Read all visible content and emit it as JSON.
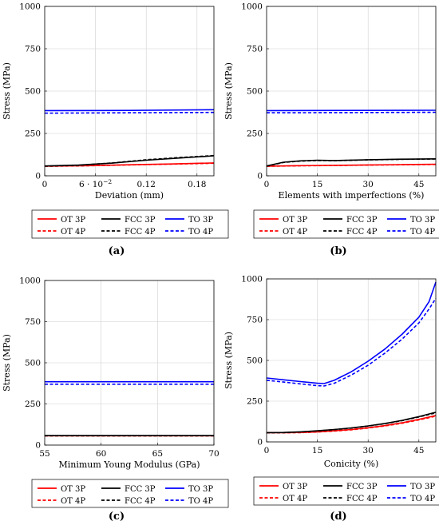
{
  "legend_entries": [
    {
      "label": "OT 3P",
      "color": "#ff0000",
      "dash": false
    },
    {
      "label": "FCC 3P",
      "color": "#000000",
      "dash": false
    },
    {
      "label": "TO 3P",
      "color": "#0000ff",
      "dash": false
    },
    {
      "label": "OT 4P",
      "color": "#ff0000",
      "dash": true
    },
    {
      "label": "FCC 4P",
      "color": "#000000",
      "dash": true
    },
    {
      "label": "TO 4P",
      "color": "#0000ff",
      "dash": true
    }
  ],
  "chart_data": [
    {
      "type": "line",
      "panel_label": "(a)",
      "xlabel": "Deviation (mm)",
      "ylabel": "Stress (MPa)",
      "xlim": [
        0,
        0.2
      ],
      "ylim": [
        0,
        1000
      ],
      "xticks": [
        0,
        0.06,
        0.12,
        0.18
      ],
      "xtick_labels": [
        "0",
        "6 · 10",
        "0.12",
        "0.18"
      ],
      "xtick_superscripts": [
        "",
        "−2",
        "",
        ""
      ],
      "yticks": [
        0,
        250,
        500,
        750,
        1000
      ],
      "ytick_labels": [
        "0",
        "250",
        "500",
        "750",
        "1000"
      ],
      "series": [
        {
          "name": "OT 3P",
          "x": [
            0,
            0.05,
            0.1,
            0.15,
            0.2
          ],
          "y": [
            57,
            60,
            65,
            70,
            76
          ]
        },
        {
          "name": "FCC 3P",
          "x": [
            0,
            0.04,
            0.08,
            0.12,
            0.16,
            0.2
          ],
          "y": [
            58,
            63,
            75,
            92,
            105,
            118
          ]
        },
        {
          "name": "TO 3P",
          "x": [
            0,
            0.1,
            0.2
          ],
          "y": [
            385,
            386,
            390
          ]
        },
        {
          "name": "OT 4P",
          "x": [
            0,
            0.05,
            0.1,
            0.15,
            0.2
          ],
          "y": [
            56,
            59,
            64,
            69,
            74
          ]
        },
        {
          "name": "FCC 4P",
          "x": [
            0,
            0.04,
            0.08,
            0.12,
            0.16,
            0.2
          ],
          "y": [
            57,
            62,
            76,
            95,
            108,
            120
          ]
        },
        {
          "name": "TO 4P",
          "x": [
            0,
            0.1,
            0.2
          ],
          "y": [
            370,
            372,
            374
          ]
        }
      ]
    },
    {
      "type": "line",
      "panel_label": "(b)",
      "xlabel": "Elements with imperfections (%)",
      "ylabel": "Stress (MPa)",
      "xlim": [
        0,
        50
      ],
      "ylim": [
        0,
        1000
      ],
      "xticks": [
        0,
        15,
        30,
        45
      ],
      "xtick_labels": [
        "0",
        "15",
        "30",
        "45"
      ],
      "xtick_superscripts": [
        "",
        "",
        "",
        ""
      ],
      "yticks": [
        0,
        250,
        500,
        750,
        1000
      ],
      "ytick_labels": [
        "0",
        "250",
        "500",
        "750",
        "1000"
      ],
      "series": [
        {
          "name": "OT 3P",
          "x": [
            0,
            10,
            20,
            30,
            40,
            50
          ],
          "y": [
            57,
            60,
            62,
            64,
            66,
            68
          ]
        },
        {
          "name": "FCC 3P",
          "x": [
            0,
            5,
            10,
            15,
            20,
            30,
            40,
            50
          ],
          "y": [
            58,
            80,
            88,
            92,
            90,
            95,
            98,
            100
          ]
        },
        {
          "name": "TO 3P",
          "x": [
            0,
            25,
            50
          ],
          "y": [
            385,
            386,
            387
          ]
        },
        {
          "name": "OT 4P",
          "x": [
            0,
            10,
            20,
            30,
            40,
            50
          ],
          "y": [
            56,
            59,
            61,
            63,
            65,
            67
          ]
        },
        {
          "name": "FCC 4P",
          "x": [
            0,
            5,
            10,
            15,
            20,
            30,
            40,
            50
          ],
          "y": [
            57,
            79,
            87,
            90,
            89,
            94,
            97,
            99
          ]
        },
        {
          "name": "TO 4P",
          "x": [
            0,
            25,
            50
          ],
          "y": [
            372,
            373,
            375
          ]
        }
      ]
    },
    {
      "type": "line",
      "panel_label": "(c)",
      "xlabel": "Minimum Young Modulus (GPa)",
      "ylabel": "Stress (MPa)",
      "xlim": [
        55,
        70
      ],
      "ylim": [
        0,
        1000
      ],
      "xticks": [
        55,
        60,
        65,
        70
      ],
      "xtick_labels": [
        "55",
        "60",
        "65",
        "70"
      ],
      "xtick_superscripts": [
        "",
        "",
        "",
        ""
      ],
      "yticks": [
        0,
        250,
        500,
        750,
        1000
      ],
      "ytick_labels": [
        "0",
        "250",
        "500",
        "750",
        "1000"
      ],
      "series": [
        {
          "name": "OT 3P",
          "x": [
            55,
            70
          ],
          "y": [
            57,
            57
          ]
        },
        {
          "name": "FCC 3P",
          "x": [
            55,
            70
          ],
          "y": [
            58,
            58
          ]
        },
        {
          "name": "TO 3P",
          "x": [
            55,
            70
          ],
          "y": [
            385,
            385
          ]
        },
        {
          "name": "OT 4P",
          "x": [
            55,
            70
          ],
          "y": [
            56,
            56
          ]
        },
        {
          "name": "FCC 4P",
          "x": [
            55,
            70
          ],
          "y": [
            57,
            57
          ]
        },
        {
          "name": "TO 4P",
          "x": [
            55,
            70
          ],
          "y": [
            370,
            370
          ]
        }
      ]
    },
    {
      "type": "line",
      "panel_label": "(d)",
      "xlabel": "Conicity (%)",
      "ylabel": "Stress (MPa)",
      "xlim": [
        0,
        50
      ],
      "ylim": [
        0,
        1000
      ],
      "xticks": [
        0,
        15,
        30,
        45
      ],
      "xtick_labels": [
        "0",
        "15",
        "30",
        "45"
      ],
      "xtick_superscripts": [
        "",
        "",
        "",
        ""
      ],
      "yticks": [
        0,
        250,
        500,
        750,
        1000
      ],
      "ytick_labels": [
        "0",
        "250",
        "500",
        "750",
        "1000"
      ],
      "series": [
        {
          "name": "OT 3P",
          "x": [
            0,
            5,
            10,
            15,
            20,
            25,
            30,
            35,
            40,
            45,
            50
          ],
          "y": [
            57,
            57,
            58,
            62,
            68,
            76,
            87,
            100,
            117,
            138,
            162
          ]
        },
        {
          "name": "FCC 3P",
          "x": [
            0,
            5,
            10,
            15,
            20,
            25,
            30,
            35,
            40,
            45,
            50
          ],
          "y": [
            57,
            58,
            62,
            68,
            76,
            86,
            98,
            113,
            132,
            155,
            182
          ]
        },
        {
          "name": "TO 3P",
          "x": [
            0,
            5,
            10,
            15,
            17,
            20,
            25,
            30,
            35,
            40,
            45,
            48,
            50
          ],
          "y": [
            392,
            381,
            370,
            360,
            358,
            378,
            430,
            495,
            570,
            660,
            765,
            860,
            980
          ]
        },
        {
          "name": "OT 4P",
          "x": [
            0,
            5,
            10,
            15,
            20,
            25,
            30,
            35,
            40,
            45,
            50
          ],
          "y": [
            56,
            56,
            57,
            61,
            66,
            74,
            85,
            98,
            114,
            135,
            158
          ]
        },
        {
          "name": "FCC 4P",
          "x": [
            0,
            5,
            10,
            15,
            20,
            25,
            30,
            35,
            40,
            45,
            50
          ],
          "y": [
            56,
            57,
            61,
            67,
            75,
            85,
            97,
            112,
            130,
            153,
            178
          ]
        },
        {
          "name": "TO 4P",
          "x": [
            0,
            5,
            10,
            15,
            17,
            20,
            25,
            30,
            35,
            40,
            45,
            48,
            50
          ],
          "y": [
            378,
            367,
            356,
            345,
            343,
            360,
            410,
            470,
            545,
            630,
            730,
            815,
            880
          ]
        }
      ]
    }
  ]
}
